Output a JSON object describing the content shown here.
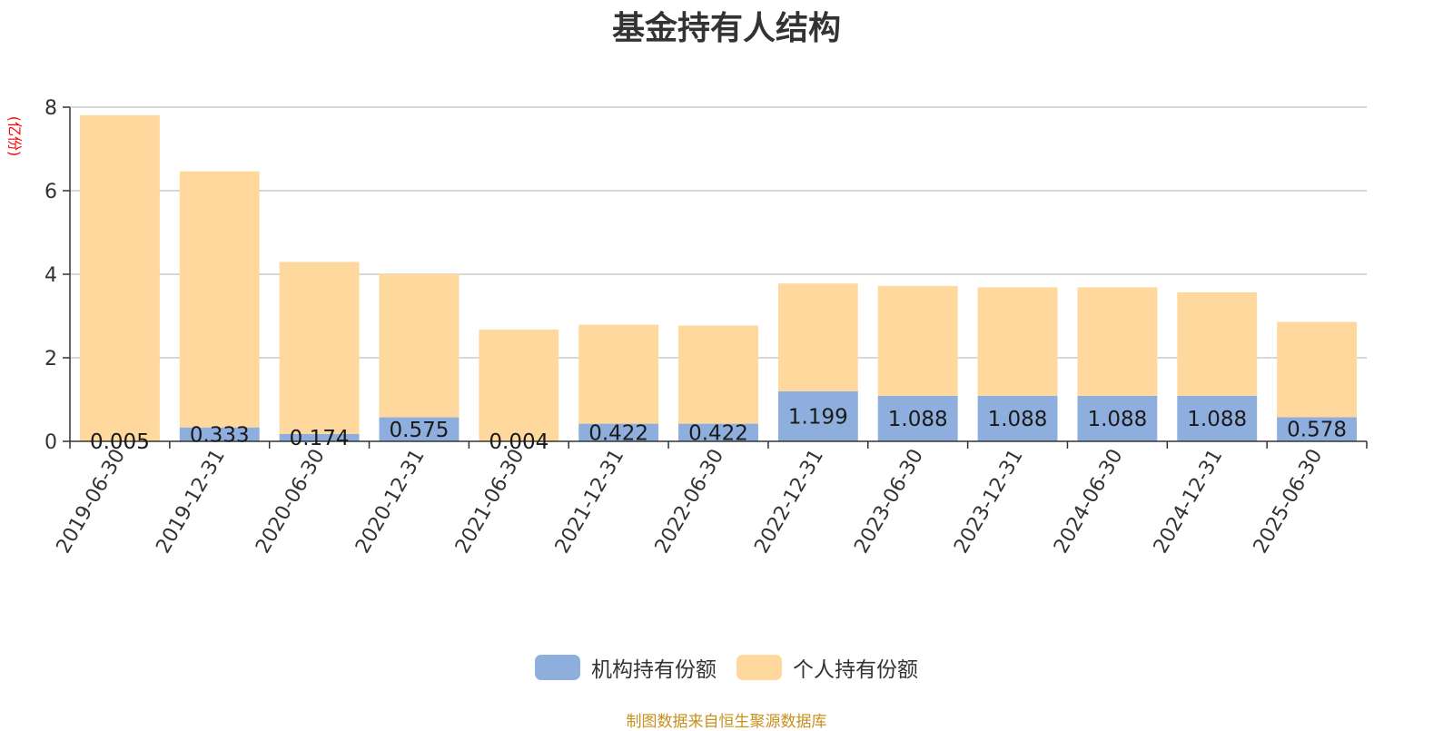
{
  "chart_data": {
    "type": "bar",
    "stacked": true,
    "title": "基金持有人结构",
    "unit_label": "(亿份)",
    "ylim": [
      0,
      8
    ],
    "yticks": [
      0,
      2,
      4,
      6,
      8
    ],
    "grid": true,
    "legend_position": "bottom",
    "categories": [
      "2019-06-30",
      "2019-12-31",
      "2020-06-30",
      "2020-12-31",
      "2021-06-30",
      "2021-12-31",
      "2022-06-30",
      "2022-12-31",
      "2023-06-30",
      "2023-12-31",
      "2024-06-30",
      "2024-12-31",
      "2025-06-30"
    ],
    "series": [
      {
        "name": "机构持有份额",
        "color": "#8eaedd",
        "values": [
          0.005,
          0.333,
          0.174,
          0.575,
          0.004,
          0.422,
          0.422,
          1.199,
          1.088,
          1.088,
          1.088,
          1.088,
          0.578
        ],
        "labels": [
          "0.005",
          "0.333",
          "0.174",
          "0.575",
          "0.004",
          "0.422",
          "0.422",
          "1.199",
          "1.088",
          "1.088",
          "1.088",
          "1.088",
          "0.578"
        ]
      },
      {
        "name": "个人持有份额",
        "color": "#fed89c",
        "values": [
          7.8,
          6.13,
          4.12,
          3.43,
          2.67,
          2.37,
          2.35,
          2.58,
          2.63,
          2.6,
          2.6,
          2.48,
          2.28
        ]
      }
    ],
    "source": "制图数据来自恒生聚源数据库"
  }
}
